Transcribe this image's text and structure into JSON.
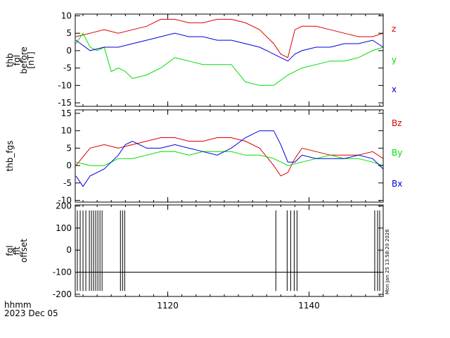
{
  "chart_data": [
    {
      "type": "line",
      "ylabel_lines": [
        "thb",
        "fgl",
        "before",
        "[nT]"
      ],
      "ylim": [
        -16,
        10.5
      ],
      "yticks": [
        -15,
        -10,
        -5,
        0,
        5,
        10
      ],
      "xlim": [
        1106.9,
        1150.5
      ],
      "legend_placement": "right",
      "series": [
        {
          "name": "z",
          "color": "#dd0000",
          "x": [
            1107,
            1109,
            1111,
            1113,
            1115,
            1117,
            1119,
            1121,
            1123,
            1125,
            1127,
            1129,
            1131,
            1133,
            1135,
            1136,
            1137,
            1138,
            1139,
            1141,
            1143,
            1145,
            1147,
            1149,
            1150.5
          ],
          "values": [
            4,
            5,
            6,
            5,
            6,
            7,
            9,
            9,
            8,
            8,
            9,
            9,
            8,
            6,
            2,
            -1,
            -2,
            6,
            7,
            7,
            6,
            5,
            4,
            4,
            5
          ]
        },
        {
          "name": "y",
          "color": "#00dd00",
          "x": [
            1107,
            1108,
            1109,
            1110,
            1111,
            1112,
            1113,
            1114,
            1115,
            1117,
            1119,
            1121,
            1123,
            1125,
            1127,
            1129,
            1131,
            1133,
            1135,
            1137,
            1139,
            1141,
            1143,
            1145,
            1147,
            1149,
            1150.5
          ],
          "values": [
            2,
            5,
            1,
            0,
            1,
            -6,
            -5,
            -6,
            -8,
            -7,
            -5,
            -2,
            -3,
            -4,
            -4,
            -4,
            -9,
            -10,
            -10,
            -7,
            -5,
            -4,
            -3,
            -3,
            -2,
            0,
            1
          ]
        },
        {
          "name": "x",
          "color": "#0000dd",
          "x": [
            1107,
            1109,
            1111,
            1113,
            1115,
            1117,
            1119,
            1121,
            1123,
            1125,
            1127,
            1129,
            1131,
            1133,
            1135,
            1136,
            1137,
            1138,
            1139,
            1141,
            1143,
            1145,
            1147,
            1149,
            1150.5
          ],
          "values": [
            3,
            0,
            1,
            1,
            2,
            3,
            4,
            5,
            4,
            4,
            3,
            3,
            2,
            1,
            -1,
            -2,
            -3,
            -1,
            0,
            1,
            1,
            2,
            2,
            3,
            1
          ]
        }
      ]
    },
    {
      "type": "line",
      "ylabel_lines": [
        "thb_fgs"
      ],
      "ylim": [
        -10.5,
        16
      ],
      "yticks": [
        -10,
        -5,
        0,
        5,
        10,
        15
      ],
      "xlim": [
        1106.9,
        1150.5
      ],
      "legend_placement": "right",
      "series": [
        {
          "name": "Bz",
          "color": "#dd0000",
          "x": [
            1107,
            1109,
            1111,
            1113,
            1115,
            1117,
            1119,
            1121,
            1123,
            1125,
            1127,
            1129,
            1131,
            1133,
            1135,
            1136,
            1137,
            1138,
            1139,
            1141,
            1143,
            1145,
            1147,
            1149,
            1150.5
          ],
          "values": [
            0,
            5,
            6,
            5,
            6,
            7,
            8,
            8,
            7,
            7,
            8,
            8,
            7,
            5,
            0,
            -3,
            -2,
            2,
            5,
            4,
            3,
            3,
            3,
            4,
            2
          ]
        },
        {
          "name": "By",
          "color": "#00dd00",
          "x": [
            1107,
            1109,
            1111,
            1113,
            1115,
            1117,
            1119,
            1121,
            1123,
            1125,
            1127,
            1129,
            1131,
            1133,
            1135,
            1137,
            1139,
            1141,
            1143,
            1145,
            1147,
            1149,
            1150.5
          ],
          "values": [
            1,
            0,
            0,
            2,
            2,
            3,
            4,
            4,
            3,
            4,
            4,
            4,
            3,
            3,
            2,
            0,
            1,
            2,
            3,
            2,
            2,
            1,
            0
          ]
        },
        {
          "name": "Bx",
          "color": "#0000dd",
          "x": [
            1107,
            1108,
            1109,
            1111,
            1113,
            1114,
            1115,
            1117,
            1119,
            1121,
            1123,
            1125,
            1127,
            1129,
            1131,
            1133,
            1135,
            1136,
            1137,
            1138,
            1139,
            1141,
            1143,
            1145,
            1147,
            1149,
            1150.5
          ],
          "values": [
            -3,
            -6,
            -3,
            -1,
            3,
            6,
            7,
            5,
            5,
            6,
            5,
            4,
            3,
            5,
            8,
            10,
            10,
            6,
            1,
            1,
            3,
            2,
            2,
            2,
            3,
            2,
            -1
          ]
        }
      ]
    },
    {
      "type": "line",
      "ylabel_lines": [
        "fgl",
        "fit",
        "offset"
      ],
      "ylim": [
        -210,
        205
      ],
      "yticks": [
        -200,
        -100,
        0,
        100,
        200
      ],
      "xlim": [
        1106.9,
        1150.5
      ],
      "baseline": -100,
      "spike_x": [
        1107.2,
        1107.6,
        1108.0,
        1108.4,
        1108.9,
        1109.2,
        1109.5,
        1109.8,
        1110.1,
        1110.4,
        1110.7,
        1113.3,
        1113.6,
        1113.9,
        1135.3,
        1136.9,
        1137.4,
        1137.9,
        1138.3,
        1149.3,
        1149.7,
        1150.0
      ],
      "series": [
        {
          "name": "",
          "color": "#000000",
          "x": [
            1107,
            1150.5
          ],
          "values": [
            -100,
            -100
          ]
        }
      ]
    }
  ],
  "xaxis": {
    "tick_values": [
      1120,
      1140
    ],
    "tick_labels": [
      "1120",
      "1140"
    ]
  },
  "footer": {
    "line1": "hhmm",
    "line2": "2023 Dec 05"
  },
  "timestamp": "Mon Jan 25 13:58:20 2026"
}
